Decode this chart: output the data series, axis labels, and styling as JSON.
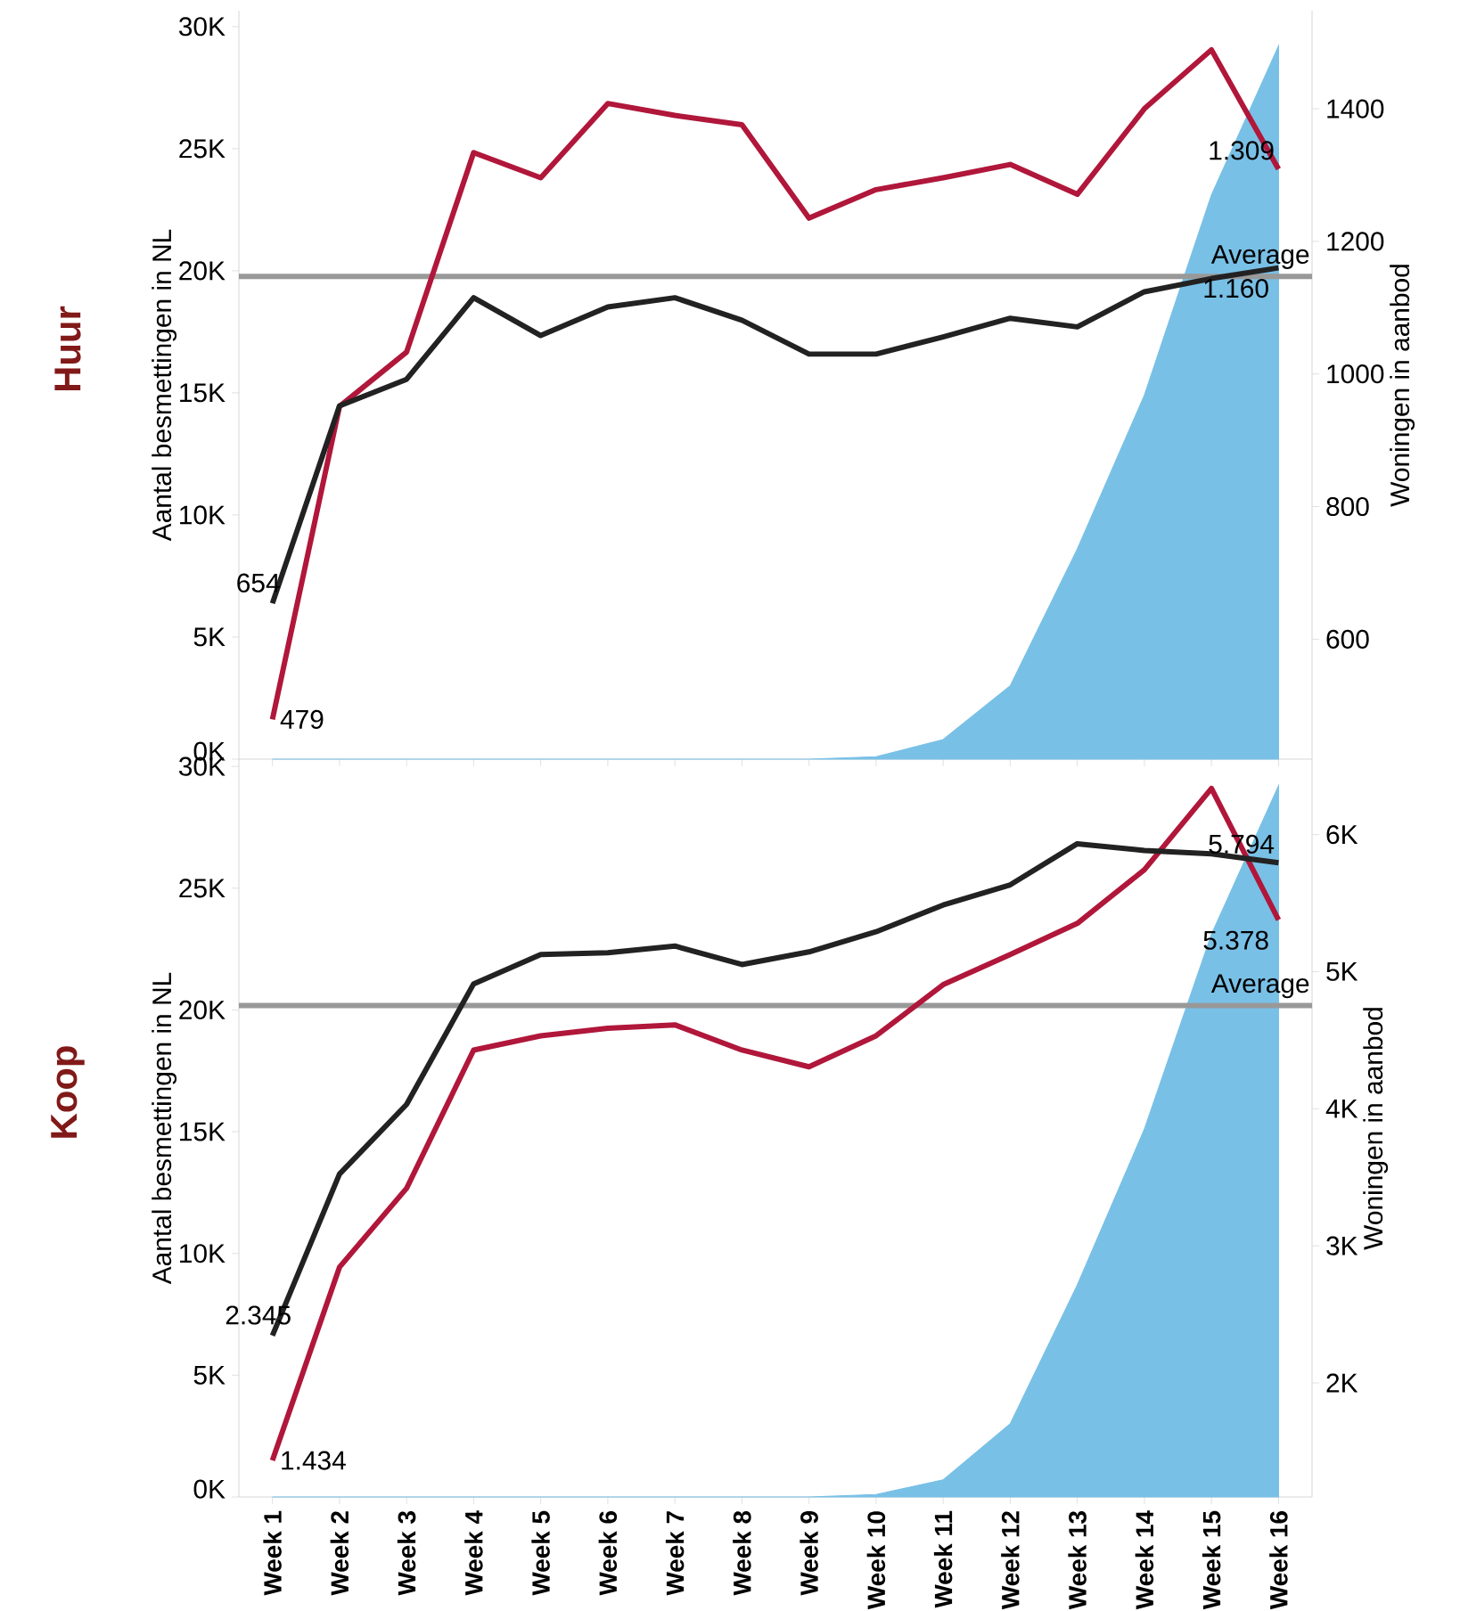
{
  "chart_data": [
    {
      "type": "line",
      "title": "Huur",
      "ylabel": "Aantal besmettingen in NL",
      "y2label": "Woningen in aanbod",
      "categories": [
        null,
        null,
        null,
        null,
        null,
        null,
        null,
        null,
        null,
        null,
        null,
        null,
        null,
        null,
        null,
        null
      ],
      "series": [
        {
          "type": "area",
          "color": "#79c0e6",
          "values": [
            0,
            0,
            0,
            0,
            0,
            0,
            0,
            0,
            0,
            100,
            800,
            3000,
            8600,
            14900,
            23100,
            29200
          ]
        },
        {
          "axis": "y2",
          "color": "#b0173a",
          "values": [
            479,
            951,
            1033,
            1334,
            1296,
            1408,
            1390,
            1376,
            1235,
            1278,
            1296,
            1316,
            1271,
            1400,
            1489,
            1309
          ],
          "value_labels": [
            "479",
            null,
            null,
            null,
            null,
            null,
            null,
            null,
            null,
            null,
            null,
            null,
            null,
            null,
            null,
            "1.309"
          ]
        },
        {
          "axis": "y2",
          "color": "#222222",
          "values": [
            654,
            952,
            992,
            1115,
            1058,
            1101,
            1115,
            1081,
            1030,
            1030,
            1056,
            1084,
            1071,
            1124,
            1144,
            1160
          ],
          "value_labels": [
            "654",
            null,
            null,
            null,
            null,
            null,
            null,
            null,
            null,
            null,
            null,
            null,
            null,
            null,
            null,
            "1.160"
          ]
        }
      ],
      "ylim": [
        0,
        30650
      ],
      "yticks": [
        {
          "value": 0,
          "label": "0K"
        },
        {
          "value": 5000,
          "label": "5K"
        },
        {
          "value": 10000,
          "label": "10K"
        },
        {
          "value": 15000,
          "label": "15K"
        },
        {
          "value": 20000,
          "label": "20K"
        },
        {
          "value": 25000,
          "label": "25K"
        },
        {
          "value": 30000,
          "label": "30K"
        }
      ],
      "y2lim": [
        419,
        1548
      ],
      "y2ticks": [
        600,
        800,
        1000,
        1200,
        1400
      ],
      "ref_lines": [
        {
          "axis": "y2",
          "value": 1147,
          "label": "Average",
          "color": "#999999"
        }
      ]
    },
    {
      "type": "line",
      "title": "Koop",
      "ylabel": "Aantal besmettingen in NL",
      "y2label": "Woningen in aanbod",
      "categories": [
        "Week 1",
        "Week 2",
        "Week 3",
        "Week 4",
        "Week 5",
        "Week 6",
        "Week 7",
        "Week 8",
        "Week 9",
        "Week 10",
        "Week 11",
        "Week 12",
        "Week 13",
        "Week 14",
        "Week 15",
        "Week 16"
      ],
      "series": [
        {
          "type": "area",
          "color": "#79c0e6",
          "values": [
            0,
            0,
            0,
            0,
            0,
            0,
            0,
            0,
            0,
            100,
            700,
            3000,
            8700,
            15100,
            23100,
            29200
          ]
        },
        {
          "axis": "y2",
          "color": "#b0173a",
          "values": [
            1434,
            2844,
            3419,
            4428,
            4532,
            4587,
            4612,
            4428,
            4306,
            4532,
            4905,
            5125,
            5352,
            5743,
            6336,
            5378
          ],
          "value_labels": [
            "1.434",
            null,
            null,
            null,
            null,
            null,
            null,
            null,
            null,
            null,
            null,
            null,
            null,
            null,
            null,
            "5.378"
          ]
        },
        {
          "axis": "y2",
          "color": "#222222",
          "values": [
            2345,
            3523,
            4031,
            4911,
            5125,
            5138,
            5187,
            5052,
            5144,
            5291,
            5486,
            5633,
            5933,
            5884,
            5859,
            5794
          ],
          "value_labels": [
            "2.345",
            null,
            null,
            null,
            null,
            null,
            null,
            null,
            null,
            null,
            null,
            null,
            null,
            null,
            null,
            "5.794"
          ]
        }
      ],
      "ylim": [
        0,
        30300
      ],
      "yticks": [
        {
          "value": 0,
          "label": "0K"
        },
        {
          "value": 5000,
          "label": "5K"
        },
        {
          "value": 10000,
          "label": "10K"
        },
        {
          "value": 15000,
          "label": "15K"
        },
        {
          "value": 20000,
          "label": "20K"
        },
        {
          "value": 25000,
          "label": "25K"
        },
        {
          "value": 30000,
          "label": "30K"
        }
      ],
      "y2lim": [
        1168,
        6550
      ],
      "y2ticks": [
        {
          "value": 2000,
          "label": "2K"
        },
        {
          "value": 3000,
          "label": "3K"
        },
        {
          "value": 4000,
          "label": "4K"
        },
        {
          "value": 5000,
          "label": "5K"
        },
        {
          "value": 6000,
          "label": "6K"
        }
      ],
      "ref_lines": [
        {
          "axis": "y2",
          "value": 4752,
          "label": "Average",
          "color": "#999999"
        }
      ]
    }
  ]
}
